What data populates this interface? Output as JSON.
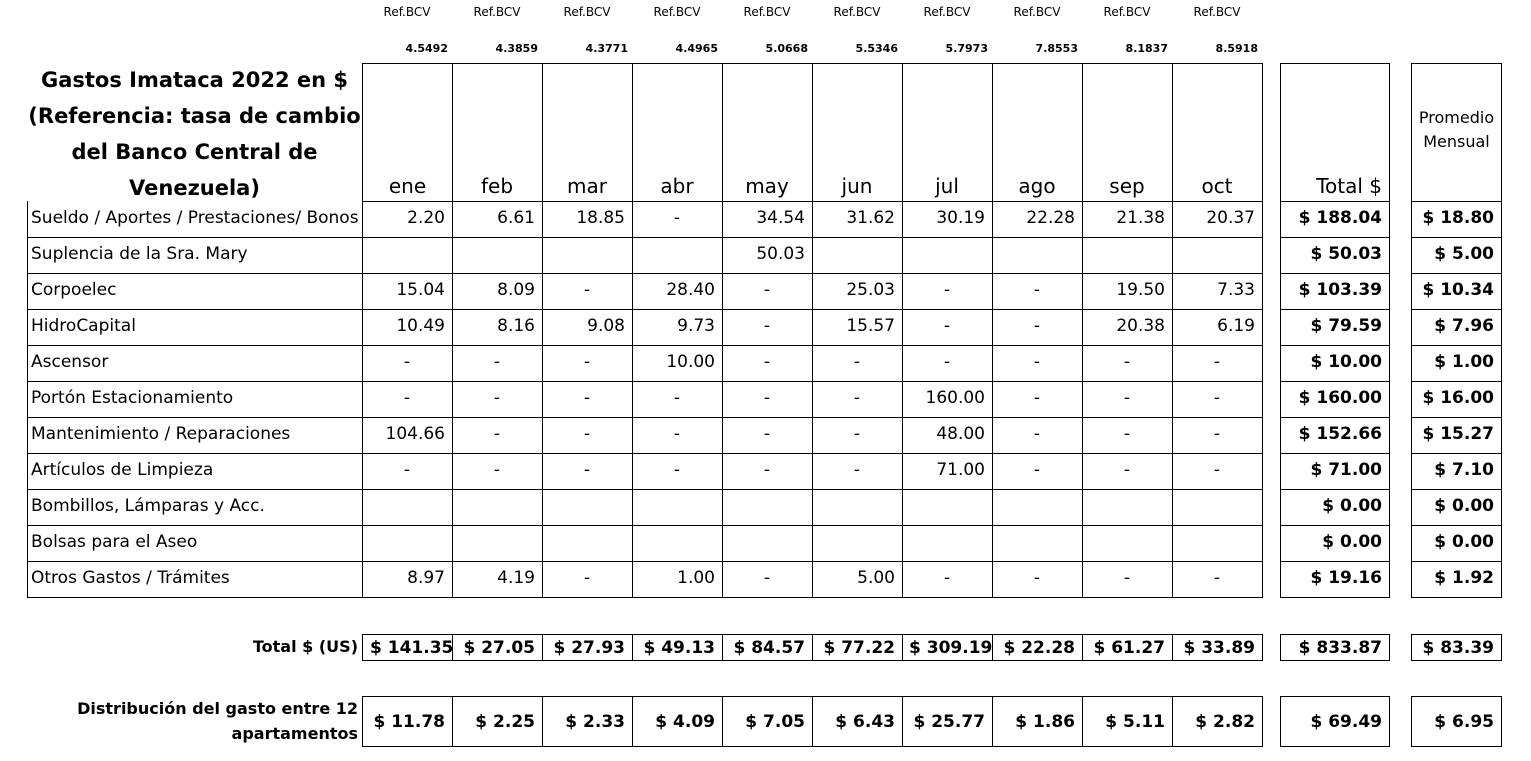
{
  "title": "Gastos Imataca 2022 en $ (Referencia:  tasa de cambio del Banco Central de Venezuela)",
  "title_lines": [
    "Gastos Imataca 2022 en $",
    "(Referencia:  tasa de cambio",
    "del Banco Central de",
    "Venezuela)"
  ],
  "ref_label": "Ref.BCV",
  "ref_rates": [
    "4.5492",
    "4.3859",
    "4.3771",
    "4.4965",
    "5.0668",
    "5.5346",
    "5.7973",
    "7.8553",
    "8.1837",
    "8.5918"
  ],
  "months": [
    "ene",
    "feb",
    "mar",
    "abr",
    "may",
    "jun",
    "jul",
    "ago",
    "sep",
    "oct"
  ],
  "total_header": "Total $",
  "promedio_header": [
    "Promedio",
    "Mensual"
  ],
  "rows": [
    {
      "label": "Sueldo / Aportes / Prestaciones/ Bonos",
      "values": [
        "2.20",
        "6.61",
        "18.85",
        "-",
        "34.54",
        "31.62",
        "30.19",
        "22.28",
        "21.38",
        "20.37"
      ],
      "total": "$ 188.04",
      "avg": "$ 18.80"
    },
    {
      "label": "Suplencia de la Sra. Mary",
      "values": [
        "",
        "",
        "",
        "",
        "50.03",
        "",
        "",
        "",
        "",
        ""
      ],
      "total": "$ 50.03",
      "avg": "$ 5.00"
    },
    {
      "label": "Corpoelec",
      "values": [
        "15.04",
        "8.09",
        "-",
        "28.40",
        "-",
        "25.03",
        "-",
        "-",
        "19.50",
        "7.33"
      ],
      "total": "$ 103.39",
      "avg": "$ 10.34"
    },
    {
      "label": "HidroCapital",
      "values": [
        "10.49",
        "8.16",
        "9.08",
        "9.73",
        "-",
        "15.57",
        "-",
        "-",
        "20.38",
        "6.19"
      ],
      "total": "$ 79.59",
      "avg": "$ 7.96"
    },
    {
      "label": "Ascensor",
      "values": [
        "-",
        "-",
        "-",
        "10.00",
        "-",
        "-",
        "-",
        "-",
        "-",
        "-"
      ],
      "total": "$ 10.00",
      "avg": "$ 1.00"
    },
    {
      "label": "Portón Estacionamiento",
      "values": [
        "-",
        "-",
        "-",
        "-",
        "-",
        "-",
        "160.00",
        "-",
        "-",
        "-"
      ],
      "total": "$ 160.00",
      "avg": "$ 16.00"
    },
    {
      "label": "Mantenimiento / Reparaciones",
      "values": [
        "104.66",
        "-",
        "-",
        "-",
        "-",
        "-",
        "48.00",
        "-",
        "-",
        "-"
      ],
      "total": "$ 152.66",
      "avg": "$ 15.27"
    },
    {
      "label": "Artículos de Limpieza",
      "values": [
        "-",
        "-",
        "-",
        "-",
        "-",
        "-",
        "71.00",
        "-",
        "-",
        "-"
      ],
      "total": "$ 71.00",
      "avg": "$ 7.10"
    },
    {
      "label": "Bombillos, Lámparas y Acc.",
      "values": [
        "",
        "",
        "",
        "",
        "",
        "",
        "",
        "",
        "",
        ""
      ],
      "total": "$ 0.00",
      "avg": "$ 0.00"
    },
    {
      "label": "Bolsas para el Aseo",
      "values": [
        "",
        "",
        "",
        "",
        "",
        "",
        "",
        "",
        "",
        ""
      ],
      "total": "$ 0.00",
      "avg": "$ 0.00"
    },
    {
      "label": "Otros Gastos / Trámites",
      "values": [
        "8.97",
        "4.19",
        "-",
        "1.00",
        "-",
        "5.00",
        "-",
        "-",
        "-",
        "-"
      ],
      "total": "$ 19.16",
      "avg": "$ 1.92"
    }
  ],
  "total_row": {
    "label": "Total $ (US)",
    "values": [
      "$ 141.35",
      "$ 27.05",
      "$ 27.93",
      "$ 49.13",
      "$ 84.57",
      "$ 77.22",
      "$ 309.19",
      "$ 22.28",
      "$ 61.27",
      "$ 33.89"
    ],
    "total": "$ 833.87",
    "avg": "$ 83.39"
  },
  "dist_row": {
    "label_lines": [
      "Distribución del gasto entre 12",
      "apartamentos"
    ],
    "values": [
      "$ 11.78",
      "$ 2.25",
      "$ 2.33",
      "$ 4.09",
      "$ 7.05",
      "$ 6.43",
      "$ 25.77",
      "$ 1.86",
      "$ 5.11",
      "$ 2.82"
    ],
    "total": "$ 69.49",
    "avg": "$ 6.95"
  }
}
